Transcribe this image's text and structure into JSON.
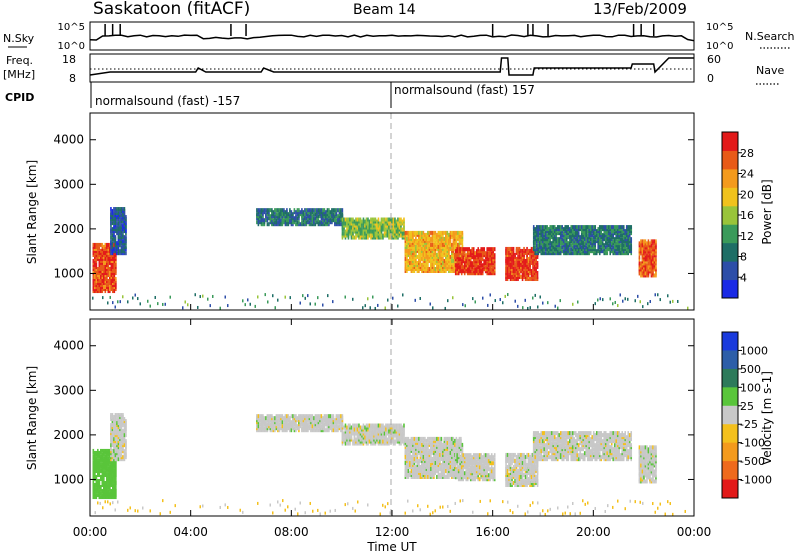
{
  "header": {
    "station": "Saskatoon (fitACF)",
    "beam": "Beam 14",
    "date": "13/Feb/2009"
  },
  "params_panel": {
    "nsky_label": "N.Sky",
    "nsearch_label": "N.Search",
    "nsky_ticks": [
      "10^5",
      "10^0"
    ],
    "nsearch_ticks": [
      "10^5",
      "10^0"
    ],
    "freq_label": "Freq.",
    "freq_unit": "[MHz]",
    "freq_ticks": [
      "18",
      "8"
    ],
    "nave_label": "Nave",
    "nave_ticks": [
      "60",
      "0"
    ],
    "cpid_label": "CPID",
    "cpid_segments": [
      {
        "label": "normalsound (fast) -157",
        "start_h": 0,
        "end_h": 12
      },
      {
        "label": "normalsound (fast) 157",
        "start_h": 12,
        "end_h": 24
      }
    ]
  },
  "x_axis": {
    "label": "Time UT",
    "ticks": [
      "00:00",
      "04:00",
      "08:00",
      "12:00",
      "16:00",
      "20:00",
      "00:00"
    ],
    "range_h": [
      0,
      24
    ]
  },
  "colorbars": {
    "power": {
      "label": "Power [dB]",
      "ticks": [
        "4",
        "8",
        "12",
        "16",
        "20",
        "24",
        "28"
      ],
      "colors": [
        "#1a2ae6",
        "#2d4ea8",
        "#1e6e66",
        "#3a9a5a",
        "#99c43a",
        "#f0c21c",
        "#f49a1c",
        "#e85a18",
        "#e31a1a"
      ]
    },
    "velocity": {
      "label": "Velocity [m s-1]",
      "ticks": [
        "1000",
        "500",
        "100",
        "25",
        "-25",
        "-100",
        "-500",
        "-1000"
      ],
      "colors": [
        "#1a3adc",
        "#2d5ea8",
        "#2d7a5a",
        "#59c53a",
        "#c8c8c8",
        "#f4c01c",
        "#f49a1c",
        "#ef6a1c",
        "#e31a1a"
      ]
    }
  },
  "chart_data": [
    {
      "type": "heatmap",
      "title": "Power",
      "ylabel": "Slant Range [km]",
      "xlabel": "Time UT",
      "xlim": [
        0,
        24
      ],
      "ylim": [
        180,
        4600
      ],
      "yticks": [
        "1000",
        "2000",
        "3000",
        "4000"
      ],
      "value_unit": "dB",
      "value_range": [
        0,
        30
      ],
      "echo_bands": [
        {
          "t0": 0.1,
          "t1": 1.0,
          "r0": 650,
          "r1": 1700,
          "value": 26
        },
        {
          "t0": 0.8,
          "t1": 1.4,
          "r0": 1500,
          "r1": 2500,
          "value": 6
        },
        {
          "t0": 6.6,
          "t1": 10.0,
          "r0": 2150,
          "r1": 2500,
          "value": 8
        },
        {
          "t0": 10.0,
          "t1": 12.5,
          "r0": 1850,
          "r1": 2300,
          "value": 14
        },
        {
          "t0": 12.5,
          "t1": 14.8,
          "r0": 1100,
          "r1": 2000,
          "value": 20
        },
        {
          "t0": 14.5,
          "t1": 16.1,
          "r0": 1050,
          "r1": 1600,
          "value": 27
        },
        {
          "t0": 16.5,
          "t1": 17.8,
          "r0": 920,
          "r1": 1600,
          "value": 27
        },
        {
          "t0": 17.6,
          "t1": 21.5,
          "r0": 1500,
          "r1": 2100,
          "value": 9
        },
        {
          "t0": 21.8,
          "t1": 22.5,
          "r0": 1000,
          "r1": 1800,
          "value": 25
        }
      ]
    },
    {
      "type": "heatmap",
      "title": "Velocity",
      "ylabel": "Slant Range [km]",
      "xlabel": "Time UT",
      "xlim": [
        0,
        24
      ],
      "ylim": [
        180,
        4600
      ],
      "yticks": [
        "1000",
        "2000",
        "3000",
        "4000"
      ],
      "value_unit": "m s-1",
      "value_range": [
        -1000,
        1000
      ],
      "echo_bands": [
        {
          "t0": 0.1,
          "t1": 1.0,
          "r0": 650,
          "r1": 1700,
          "value": 60
        },
        {
          "t0": 0.8,
          "t1": 1.4,
          "r0": 1500,
          "r1": 2500,
          "value": 0
        },
        {
          "t0": 6.6,
          "t1": 10.0,
          "r0": 2150,
          "r1": 2500,
          "value": 0
        },
        {
          "t0": 10.0,
          "t1": 12.5,
          "r0": 1850,
          "r1": 2300,
          "value": 0
        },
        {
          "t0": 12.5,
          "t1": 14.8,
          "r0": 1100,
          "r1": 2000,
          "value": 0
        },
        {
          "t0": 14.5,
          "t1": 16.1,
          "r0": 1050,
          "r1": 1600,
          "value": 0
        },
        {
          "t0": 16.5,
          "t1": 17.8,
          "r0": 920,
          "r1": 1600,
          "value": 0
        },
        {
          "t0": 17.6,
          "t1": 21.5,
          "r0": 1500,
          "r1": 2100,
          "value": 0
        },
        {
          "t0": 21.8,
          "t1": 22.5,
          "r0": 1000,
          "r1": 1800,
          "value": 0
        }
      ]
    }
  ]
}
